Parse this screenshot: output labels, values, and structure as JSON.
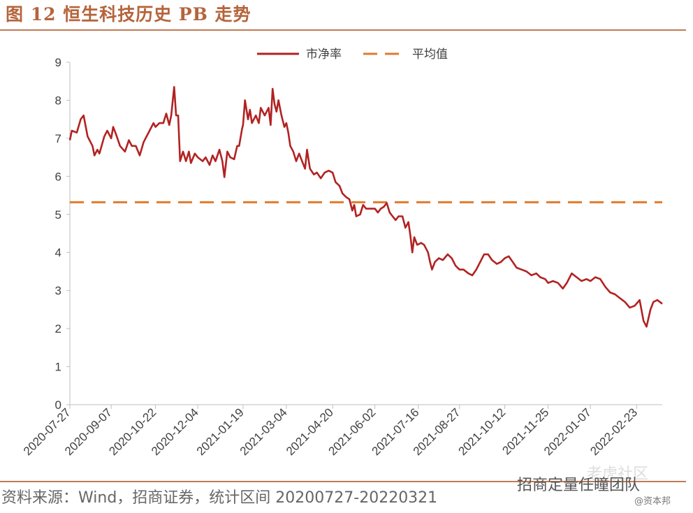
{
  "figure": {
    "label": "图 12",
    "title": "恒生科技历史 PB 走势",
    "source": "资料来源：Wind，招商证券，统计区间 20200727-20220321",
    "watermark": "招商定量任瞳团队",
    "watermark_small": "@资本邦",
    "watermark_faint": "老虎社区"
  },
  "chart_data": {
    "type": "line",
    "ylim": [
      0,
      9
    ],
    "yticks": [
      0,
      1,
      2,
      3,
      4,
      5,
      6,
      7,
      8,
      9
    ],
    "xlim": [
      "2020-07-27",
      "2022-03-21"
    ],
    "xticks": [
      "2020-07-27",
      "2020-09-07",
      "2020-10-22",
      "2020-12-04",
      "2021-01-19",
      "2021-03-04",
      "2021-04-20",
      "2021-06-02",
      "2021-07-16",
      "2021-08-27",
      "2021-10-12",
      "2021-11-25",
      "2022-01-07",
      "2022-02-23"
    ],
    "grid": false,
    "legend_position": "top-center",
    "series": [
      {
        "name": "市净率",
        "color": "#b22222",
        "style": "solid",
        "points": [
          [
            "2020-07-27",
            6.95
          ],
          [
            "2020-07-29",
            7.2
          ],
          [
            "2020-08-03",
            7.15
          ],
          [
            "2020-08-07",
            7.5
          ],
          [
            "2020-08-10",
            7.6
          ],
          [
            "2020-08-14",
            7.05
          ],
          [
            "2020-08-19",
            6.8
          ],
          [
            "2020-08-21",
            6.55
          ],
          [
            "2020-08-24",
            6.7
          ],
          [
            "2020-08-26",
            6.6
          ],
          [
            "2020-08-31",
            7.05
          ],
          [
            "2020-09-03",
            7.2
          ],
          [
            "2020-09-07",
            7.0
          ],
          [
            "2020-09-09",
            7.3
          ],
          [
            "2020-09-12",
            7.1
          ],
          [
            "2020-09-16",
            6.8
          ],
          [
            "2020-09-21",
            6.65
          ],
          [
            "2020-09-25",
            6.95
          ],
          [
            "2020-09-28",
            6.8
          ],
          [
            "2020-10-02",
            6.8
          ],
          [
            "2020-10-06",
            6.55
          ],
          [
            "2020-10-10",
            6.9
          ],
          [
            "2020-10-16",
            7.2
          ],
          [
            "2020-10-20",
            7.4
          ],
          [
            "2020-10-22",
            7.3
          ],
          [
            "2020-10-26",
            7.4
          ],
          [
            "2020-10-30",
            7.4
          ],
          [
            "2020-11-02",
            7.65
          ],
          [
            "2020-11-05",
            7.35
          ],
          [
            "2020-11-07",
            7.6
          ],
          [
            "2020-11-10",
            8.35
          ],
          [
            "2020-11-12",
            7.6
          ],
          [
            "2020-11-14",
            7.6
          ],
          [
            "2020-11-16",
            6.4
          ],
          [
            "2020-11-19",
            6.65
          ],
          [
            "2020-11-22",
            6.4
          ],
          [
            "2020-11-25",
            6.65
          ],
          [
            "2020-11-27",
            6.35
          ],
          [
            "2020-12-01",
            6.6
          ],
          [
            "2020-12-04",
            6.5
          ],
          [
            "2020-12-09",
            6.4
          ],
          [
            "2020-12-12",
            6.5
          ],
          [
            "2020-12-16",
            6.3
          ],
          [
            "2020-12-19",
            6.55
          ],
          [
            "2020-12-22",
            6.4
          ],
          [
            "2020-12-26",
            6.7
          ],
          [
            "2020-12-29",
            6.4
          ],
          [
            "2020-12-31",
            5.98
          ],
          [
            "2021-01-03",
            6.65
          ],
          [
            "2021-01-06",
            6.5
          ],
          [
            "2021-01-10",
            6.45
          ],
          [
            "2021-01-13",
            6.8
          ],
          [
            "2021-01-15",
            6.8
          ],
          [
            "2021-01-18",
            7.25
          ],
          [
            "2021-01-19",
            7.35
          ],
          [
            "2021-01-21",
            8.0
          ],
          [
            "2021-01-24",
            7.5
          ],
          [
            "2021-01-26",
            7.75
          ],
          [
            "2021-01-28",
            7.4
          ],
          [
            "2021-02-01",
            7.6
          ],
          [
            "2021-02-04",
            7.4
          ],
          [
            "2021-02-06",
            7.8
          ],
          [
            "2021-02-10",
            7.6
          ],
          [
            "2021-02-14",
            7.8
          ],
          [
            "2021-02-16",
            7.35
          ],
          [
            "2021-02-18",
            8.3
          ],
          [
            "2021-02-20",
            7.9
          ],
          [
            "2021-02-22",
            7.7
          ],
          [
            "2021-02-24",
            8.0
          ],
          [
            "2021-02-27",
            7.6
          ],
          [
            "2021-03-02",
            7.3
          ],
          [
            "2021-03-04",
            7.4
          ],
          [
            "2021-03-06",
            7.15
          ],
          [
            "2021-03-08",
            6.8
          ],
          [
            "2021-03-11",
            6.65
          ],
          [
            "2021-03-14",
            6.4
          ],
          [
            "2021-03-17",
            6.6
          ],
          [
            "2021-03-20",
            6.4
          ],
          [
            "2021-03-23",
            6.2
          ],
          [
            "2021-03-25",
            6.7
          ],
          [
            "2021-03-28",
            6.2
          ],
          [
            "2021-04-01",
            6.05
          ],
          [
            "2021-04-04",
            6.1
          ],
          [
            "2021-04-08",
            5.95
          ],
          [
            "2021-04-12",
            6.1
          ],
          [
            "2021-04-16",
            6.15
          ],
          [
            "2021-04-20",
            6.1
          ],
          [
            "2021-04-23",
            5.85
          ],
          [
            "2021-04-27",
            5.75
          ],
          [
            "2021-04-30",
            5.55
          ],
          [
            "2021-05-04",
            5.45
          ],
          [
            "2021-05-07",
            5.4
          ],
          [
            "2021-05-10",
            5.1
          ],
          [
            "2021-05-12",
            5.25
          ],
          [
            "2021-05-14",
            4.95
          ],
          [
            "2021-05-18",
            5.0
          ],
          [
            "2021-05-21",
            5.25
          ],
          [
            "2021-05-24",
            5.15
          ],
          [
            "2021-05-28",
            5.15
          ],
          [
            "2021-06-02",
            5.15
          ],
          [
            "2021-06-05",
            5.05
          ],
          [
            "2021-06-08",
            5.15
          ],
          [
            "2021-06-11",
            5.2
          ],
          [
            "2021-06-14",
            5.3
          ],
          [
            "2021-06-17",
            5.05
          ],
          [
            "2021-06-20",
            4.95
          ],
          [
            "2021-06-23",
            4.85
          ],
          [
            "2021-06-26",
            4.95
          ],
          [
            "2021-06-30",
            4.95
          ],
          [
            "2021-07-03",
            4.65
          ],
          [
            "2021-07-06",
            4.8
          ],
          [
            "2021-07-08",
            4.45
          ],
          [
            "2021-07-10",
            4.0
          ],
          [
            "2021-07-12",
            4.4
          ],
          [
            "2021-07-15",
            4.2
          ],
          [
            "2021-07-19",
            4.25
          ],
          [
            "2021-07-22",
            4.2
          ],
          [
            "2021-07-26",
            4.0
          ],
          [
            "2021-07-28",
            3.75
          ],
          [
            "2021-07-30",
            3.55
          ],
          [
            "2021-08-02",
            3.75
          ],
          [
            "2021-08-06",
            3.85
          ],
          [
            "2021-08-10",
            3.8
          ],
          [
            "2021-08-15",
            3.95
          ],
          [
            "2021-08-19",
            3.85
          ],
          [
            "2021-08-23",
            3.65
          ],
          [
            "2021-08-27",
            3.55
          ],
          [
            "2021-08-31",
            3.55
          ],
          [
            "2021-09-05",
            3.45
          ],
          [
            "2021-09-09",
            3.4
          ],
          [
            "2021-09-13",
            3.55
          ],
          [
            "2021-09-17",
            3.75
          ],
          [
            "2021-09-21",
            3.95
          ],
          [
            "2021-09-25",
            3.95
          ],
          [
            "2021-09-29",
            3.8
          ],
          [
            "2021-10-04",
            3.7
          ],
          [
            "2021-10-08",
            3.75
          ],
          [
            "2021-10-12",
            3.85
          ],
          [
            "2021-10-16",
            3.9
          ],
          [
            "2021-10-20",
            3.75
          ],
          [
            "2021-10-24",
            3.6
          ],
          [
            "2021-10-29",
            3.55
          ],
          [
            "2021-11-03",
            3.5
          ],
          [
            "2021-11-08",
            3.4
          ],
          [
            "2021-11-13",
            3.45
          ],
          [
            "2021-11-17",
            3.35
          ],
          [
            "2021-11-22",
            3.3
          ],
          [
            "2021-11-25",
            3.2
          ],
          [
            "2021-11-30",
            3.25
          ],
          [
            "2021-12-05",
            3.2
          ],
          [
            "2021-12-10",
            3.05
          ],
          [
            "2021-12-14",
            3.2
          ],
          [
            "2021-12-19",
            3.45
          ],
          [
            "2021-12-24",
            3.35
          ],
          [
            "2021-12-29",
            3.25
          ],
          [
            "2022-01-03",
            3.3
          ],
          [
            "2022-01-07",
            3.25
          ],
          [
            "2022-01-12",
            3.35
          ],
          [
            "2022-01-17",
            3.3
          ],
          [
            "2022-01-22",
            3.1
          ],
          [
            "2022-01-27",
            2.95
          ],
          [
            "2022-02-01",
            2.9
          ],
          [
            "2022-02-06",
            2.8
          ],
          [
            "2022-02-11",
            2.7
          ],
          [
            "2022-02-16",
            2.55
          ],
          [
            "2022-02-21",
            2.6
          ],
          [
            "2022-02-26",
            2.75
          ],
          [
            "2022-03-02",
            2.2
          ],
          [
            "2022-03-05",
            2.05
          ],
          [
            "2022-03-09",
            2.5
          ],
          [
            "2022-03-12",
            2.7
          ],
          [
            "2022-03-16",
            2.75
          ],
          [
            "2022-03-21",
            2.65
          ]
        ]
      },
      {
        "name": "平均值",
        "color": "#e07b2d",
        "style": "dashed",
        "value": 5.32
      }
    ]
  }
}
